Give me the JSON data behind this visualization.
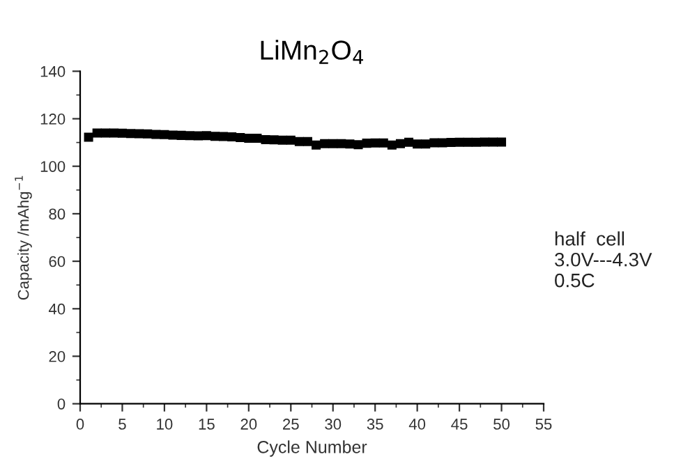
{
  "chart_data": {
    "type": "scatter",
    "title": "LiMn$_{2}$O$_{4}$",
    "xlabel": "Cycle Number",
    "ylabel": "Capacity /mAhg$^{−1}$",
    "x": [
      1,
      2,
      3,
      4,
      5,
      6,
      7,
      8,
      9,
      10,
      11,
      12,
      13,
      14,
      15,
      16,
      17,
      18,
      19,
      20,
      21,
      22,
      23,
      24,
      25,
      26,
      27,
      28,
      29,
      30,
      31,
      32,
      33,
      34,
      35,
      36,
      37,
      38,
      39,
      40,
      41,
      42,
      43,
      44,
      45,
      46,
      47,
      48,
      49,
      50
    ],
    "series": [
      {
        "color": "#000000",
        "values": [
          112.2,
          114,
          114,
          114,
          113.9,
          113.8,
          113.7,
          113.6,
          113.4,
          113.3,
          113.1,
          113,
          112.9,
          112.8,
          112.9,
          112.6,
          112.5,
          112.4,
          112.1,
          111.8,
          111.8,
          111.2,
          111.1,
          111,
          111,
          110.4,
          110.4,
          108.9,
          109.5,
          109.5,
          109.5,
          109.4,
          109.1,
          109.7,
          109.8,
          109.8,
          108.9,
          109.5,
          110.1,
          109.4,
          109.4,
          109.9,
          109.9,
          110,
          110.1,
          110.1,
          110.1,
          110.2,
          110.2,
          110.2
        ]
      }
    ],
    "marker": "square",
    "grid": false,
    "legend": false,
    "xlim": [
      0,
      55
    ],
    "xticks": [
      0,
      5,
      10,
      15,
      20,
      25,
      30,
      35,
      40,
      45,
      50,
      55
    ],
    "ylim": [
      0,
      140
    ],
    "yticks": [
      0,
      20,
      40,
      60,
      80,
      100,
      120,
      140
    ],
    "annotations": [
      {
        "text": "half  cell\n3.0V---4.3V\n0.5C"
      }
    ]
  }
}
